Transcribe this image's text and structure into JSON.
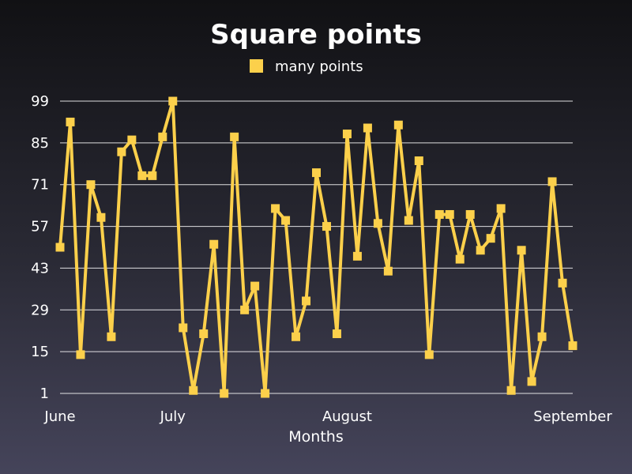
{
  "chart_data": {
    "type": "line",
    "title": "Square points",
    "xlabel": "Months",
    "ylabel": "",
    "legend_position": "top-center",
    "grid": true,
    "y_ticks": [
      1,
      15,
      29,
      43,
      57,
      71,
      85,
      99
    ],
    "ylim": [
      1,
      99
    ],
    "x_ticks": [
      "June",
      "July",
      "August",
      "September"
    ],
    "x_tick_index": [
      0,
      11,
      28,
      50
    ],
    "colors": {
      "series": "#fcd04b",
      "grid": "#ffffff",
      "text": "#ffffff"
    },
    "marker": "square",
    "series": [
      {
        "name": "many points",
        "values": [
          50,
          92,
          14,
          71,
          60,
          20,
          82,
          86,
          74,
          74,
          87,
          99,
          23,
          2,
          21,
          51,
          1,
          87,
          29,
          37,
          1,
          63,
          59,
          20,
          32,
          75,
          57,
          21,
          88,
          47,
          90,
          58,
          42,
          91,
          59,
          79,
          14,
          61,
          61,
          46,
          61,
          49,
          53,
          63,
          2,
          49,
          5,
          20,
          72,
          38,
          17
        ]
      }
    ]
  }
}
